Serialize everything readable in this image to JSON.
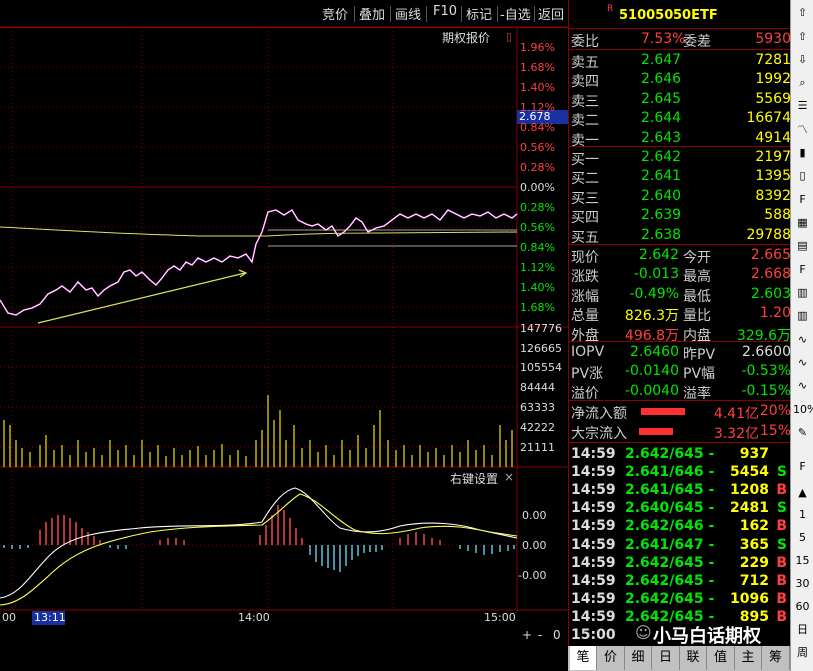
{
  "toolbar": {
    "buttons": [
      "竞价",
      "叠加",
      "画线",
      "F10",
      "标记",
      "-自选",
      "返回"
    ]
  },
  "chart": {
    "option_quote_label": "期权报价",
    "cursor_price": "2.678",
    "pct_labels": [
      "1.96%",
      "1.68%",
      "1.40%",
      "1.12%",
      "0.84%",
      "0.56%",
      "0.28%",
      "0.00%",
      "0.28%",
      "0.56%",
      "0.84%",
      "1.12%",
      "1.40%",
      "1.68%"
    ],
    "volume_labels": [
      "147776",
      "126665",
      "105554",
      "84444",
      "63333",
      "42222",
      "21111"
    ],
    "indicator_title": "右键设置",
    "indicator_close": "×",
    "indicator_labels": [
      "0.00",
      "0.00",
      "-0.00"
    ],
    "time_labels": [
      "00",
      "13:11",
      "14:00",
      "15:00"
    ],
    "corner_buttons": [
      "+",
      "-",
      "0"
    ]
  },
  "quote": {
    "code_marker": "R",
    "code": "510050",
    "name": "50ETF",
    "weibi_label": "委比",
    "weibi": "7.53%",
    "weicha_label": "委差",
    "weicha": "5930",
    "asks": [
      {
        "label": "卖五",
        "price": "2.647",
        "vol": "7281"
      },
      {
        "label": "卖四",
        "price": "2.646",
        "vol": "1992"
      },
      {
        "label": "卖三",
        "price": "2.645",
        "vol": "5569"
      },
      {
        "label": "卖二",
        "price": "2.644",
        "vol": "16674"
      },
      {
        "label": "卖一",
        "price": "2.643",
        "vol": "4914"
      }
    ],
    "bids": [
      {
        "label": "买一",
        "price": "2.642",
        "vol": "2197"
      },
      {
        "label": "买二",
        "price": "2.641",
        "vol": "1395"
      },
      {
        "label": "买三",
        "price": "2.640",
        "vol": "8392"
      },
      {
        "label": "买四",
        "price": "2.639",
        "vol": "588"
      },
      {
        "label": "买五",
        "price": "2.638",
        "vol": "29788"
      }
    ],
    "stats": [
      {
        "l1": "现价",
        "v1": "2.642",
        "l2": "今开",
        "v2": "2.665"
      },
      {
        "l1": "涨跌",
        "v1": "-0.013",
        "l2": "最高",
        "v2": "2.668"
      },
      {
        "l1": "涨幅",
        "v1": "-0.49%",
        "l2": "最低",
        "v2": "2.603"
      },
      {
        "l1": "总量",
        "v1": "826.3万",
        "l2": "量比",
        "v2": "1.20"
      },
      {
        "l1": "外盘",
        "v1": "496.8万",
        "l2": "内盘",
        "v2": "329.6万"
      }
    ],
    "iopv": [
      {
        "l1": "IOPV",
        "v1": "2.6460",
        "l2": "昨PV",
        "v2": "2.6600"
      },
      {
        "l1": "PV涨",
        "v1": "-0.0140",
        "l2": "PV幅",
        "v2": "-0.53%"
      },
      {
        "l1": "溢价",
        "v1": "-0.0040",
        "l2": "溢率",
        "v2": "-0.15%"
      }
    ],
    "flow": [
      {
        "label": "净流入额",
        "value": "4.41亿",
        "pct": "20%"
      },
      {
        "label": "大宗流入",
        "value": "3.32亿",
        "pct": "15%"
      }
    ],
    "ticks": [
      {
        "time": "14:59",
        "price": "2.642/645 -",
        "vol": "937",
        "flag": ""
      },
      {
        "time": "14:59",
        "price": "2.641/646 -",
        "vol": "5454",
        "flag": "S"
      },
      {
        "time": "14:59",
        "price": "2.641/645 -",
        "vol": "1208",
        "flag": "B"
      },
      {
        "time": "14:59",
        "price": "2.640/645 -",
        "vol": "2481",
        "flag": "S"
      },
      {
        "time": "14:59",
        "price": "2.642/646 -",
        "vol": "162",
        "flag": "B"
      },
      {
        "time": "14:59",
        "price": "2.641/647 -",
        "vol": "365",
        "flag": "S"
      },
      {
        "time": "14:59",
        "price": "2.642/645 -",
        "vol": "229",
        "flag": "B"
      },
      {
        "time": "14:59",
        "price": "2.642/645 -",
        "vol": "712",
        "flag": "B"
      },
      {
        "time": "14:59",
        "price": "2.642/645 -",
        "vol": "1096",
        "flag": "B"
      },
      {
        "time": "14:59",
        "price": "2.642/645 -",
        "vol": "895",
        "flag": "B"
      },
      {
        "time": "15:00",
        "price": "",
        "vol": "",
        "flag": ""
      }
    ],
    "watermark": "小马白话期权"
  },
  "bottom_tabs": [
    "笔",
    "价",
    "细",
    "日",
    "联",
    "值",
    "主",
    "筹"
  ],
  "right_toolbar": [
    "1",
    "5",
    "15",
    "30",
    "60",
    "日",
    "周",
    "10%"
  ]
}
